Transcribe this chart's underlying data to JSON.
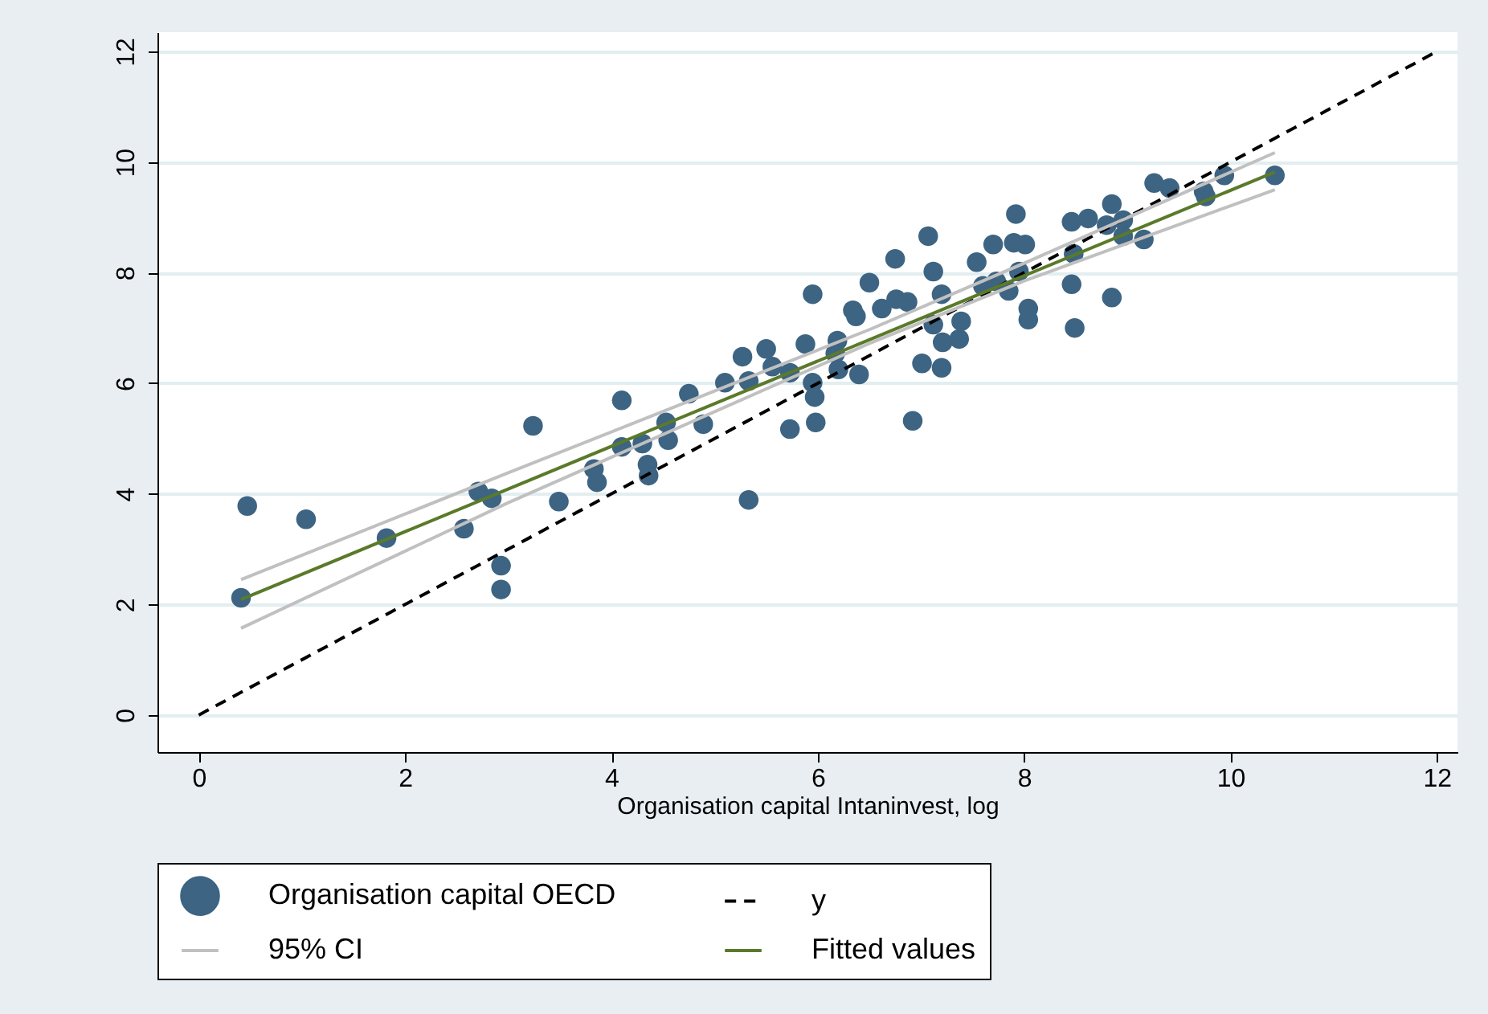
{
  "chart_data": {
    "type": "scatter",
    "xlabel": "Organisation capital Intaninvest, log",
    "xlim": [
      -0.4,
      12.2
    ],
    "ylim": [
      -0.67,
      12.35
    ],
    "xticks": [
      0,
      2,
      4,
      6,
      8,
      10,
      12
    ],
    "yticks": [
      0,
      2,
      4,
      6,
      8,
      10,
      12
    ],
    "grid": "y",
    "legend": "bottom",
    "series": [
      {
        "name": "Organisation capital OECD",
        "marker": "circle",
        "color": "#3d6482",
        "x": [
          0.41,
          0.47,
          1.04,
          1.82,
          2.57,
          2.71,
          2.84,
          2.93,
          2.93,
          3.24,
          3.49,
          3.83,
          3.86,
          4.1,
          4.1,
          4.3,
          4.35,
          4.36,
          4.53,
          4.55,
          4.75,
          4.89,
          5.1,
          5.27,
          5.33,
          5.33,
          5.5,
          5.56,
          5.73,
          5.73,
          5.88,
          5.95,
          5.95,
          5.97,
          5.98,
          6.17,
          6.19,
          6.2,
          6.34,
          6.37,
          6.4,
          6.5,
          6.62,
          6.75,
          6.76,
          6.87,
          6.92,
          7.01,
          7.07,
          7.12,
          7.12,
          7.2,
          7.21,
          7.2,
          7.37,
          7.39,
          7.54,
          7.6,
          7.7,
          7.73,
          7.85,
          7.9,
          7.92,
          7.95,
          8.01,
          8.04,
          8.04,
          8.46,
          8.46,
          8.48,
          8.49,
          8.62,
          8.8,
          8.85,
          8.85,
          8.96,
          8.96,
          9.16,
          9.26,
          9.41,
          9.74,
          9.76,
          9.94,
          10.43
        ],
        "values": [
          2.12,
          3.78,
          3.54,
          3.2,
          3.37,
          4.04,
          3.92,
          2.7,
          2.27,
          5.23,
          3.86,
          4.45,
          4.21,
          5.69,
          4.85,
          4.91,
          4.53,
          4.33,
          5.29,
          4.97,
          5.81,
          5.26,
          6.01,
          6.48,
          6.04,
          3.89,
          6.62,
          6.3,
          5.17,
          6.19,
          6.71,
          7.61,
          6.01,
          5.75,
          5.29,
          6.54,
          6.77,
          6.25,
          7.32,
          7.21,
          6.16,
          7.82,
          7.35,
          8.25,
          7.52,
          7.47,
          5.32,
          6.36,
          8.66,
          8.02,
          7.06,
          7.61,
          6.74,
          6.28,
          6.8,
          7.12,
          8.19,
          7.76,
          8.51,
          7.84,
          7.67,
          8.54,
          9.06,
          8.02,
          8.51,
          7.35,
          7.15,
          8.92,
          7.79,
          8.34,
          7.0,
          8.98,
          8.86,
          9.24,
          7.55,
          8.95,
          8.66,
          8.6,
          9.62,
          9.53,
          9.47,
          9.38,
          9.76,
          9.76
        ]
      },
      {
        "name": "y",
        "type": "line",
        "line_style": "dashed",
        "color": "#000000",
        "x": [
          0,
          12
        ],
        "values": [
          0,
          12
        ]
      },
      {
        "name": "95% CI",
        "type": "line",
        "line_style": "solid",
        "color": "#c0c0c0",
        "x": [
          0.41,
          3,
          6.5,
          8,
          10.43
        ],
        "values": [
          2.45,
          4.38,
          6.97,
          8.17,
          10.17
        ]
      },
      {
        "type": "line",
        "line_style": "solid",
        "color": "#c0c0c0",
        "x": [
          0.41,
          3,
          6.5,
          8,
          10.43
        ],
        "values": [
          1.57,
          3.84,
          6.72,
          7.85,
          9.5
        ]
      },
      {
        "name": "Fitted values",
        "type": "line",
        "line_style": "solid",
        "color": "#5a7a2a",
        "x": [
          0.41,
          10.43
        ],
        "values": [
          2.09,
          9.82
        ]
      }
    ]
  }
}
